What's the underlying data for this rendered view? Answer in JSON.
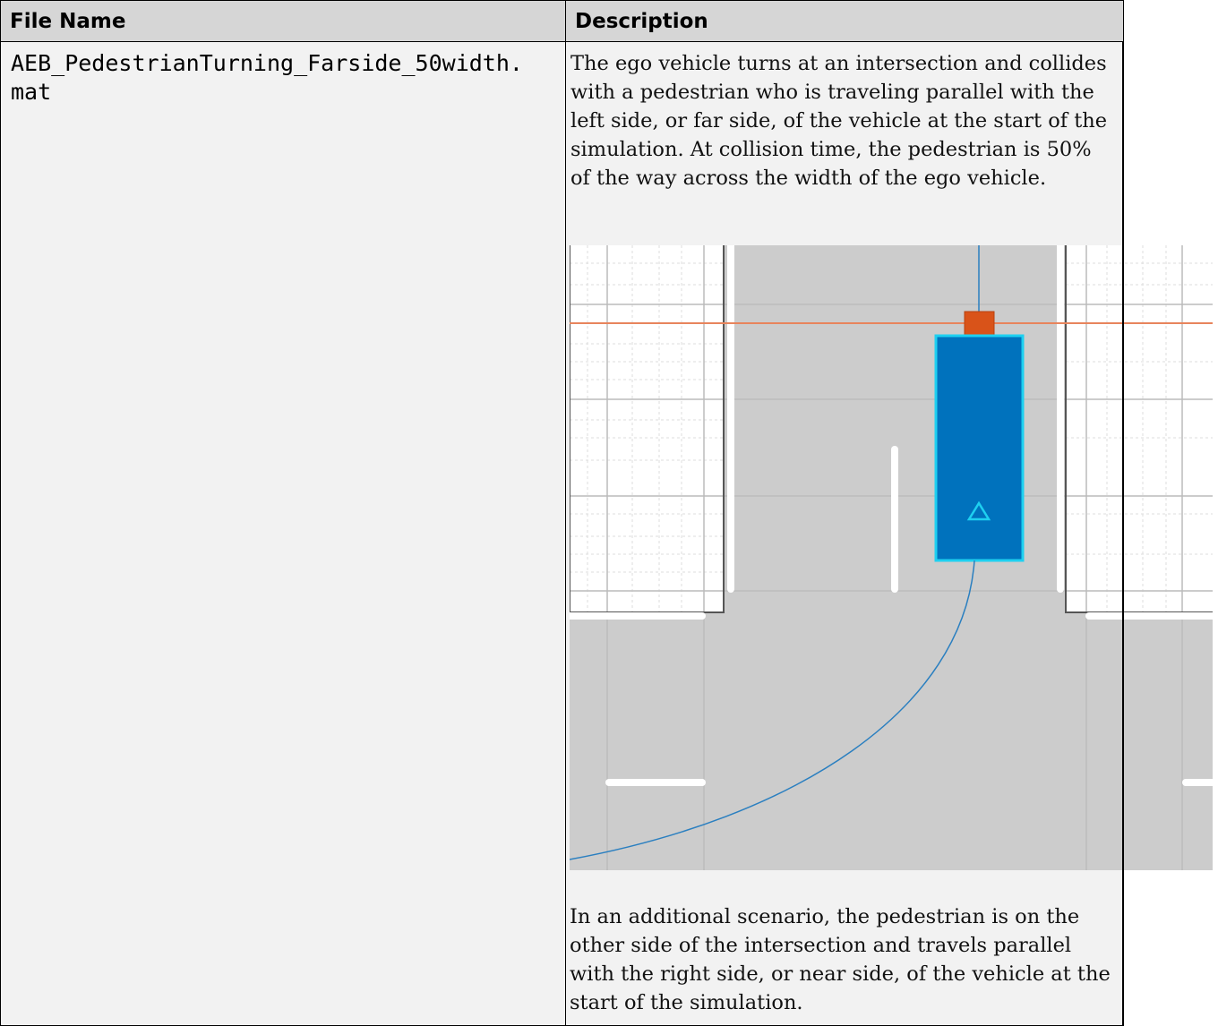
{
  "table": {
    "headers": [
      "File Name",
      "Description"
    ],
    "rows": [
      {
        "file_name": "AEB_PedestrianTurning_Farside_50width.mat",
        "description": "The ego vehicle turns at an intersection and collides with a pedestrian who is traveling parallel with the left side, or far side, of the vehicle at the start of the simulation. At collision time, the pedestrian is 50% of the way across the width of the ego vehicle.",
        "note": "In an additional scenario, the pedestrian is on the other side of the intersection and travels parallel with the right side, or near side, of the vehicle at the start of the simulation."
      }
    ]
  }
}
